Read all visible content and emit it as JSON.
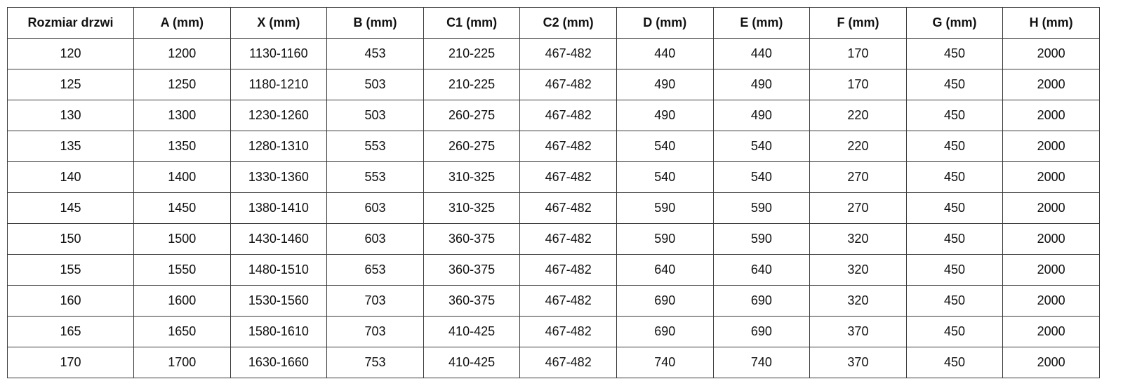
{
  "table": {
    "headers": [
      "Rozmiar drzwi",
      "A (mm)",
      "X (mm)",
      "B (mm)",
      "C1 (mm)",
      "C2 (mm)",
      "D (mm)",
      "E (mm)",
      "F (mm)",
      "G (mm)",
      "H (mm)"
    ],
    "rows": [
      [
        "120",
        "1200",
        "1130-1160",
        "453",
        "210-225",
        "467-482",
        "440",
        "440",
        "170",
        "450",
        "2000"
      ],
      [
        "125",
        "1250",
        "1180-1210",
        "503",
        "210-225",
        "467-482",
        "490",
        "490",
        "170",
        "450",
        "2000"
      ],
      [
        "130",
        "1300",
        "1230-1260",
        "503",
        "260-275",
        "467-482",
        "490",
        "490",
        "220",
        "450",
        "2000"
      ],
      [
        "135",
        "1350",
        "1280-1310",
        "553",
        "260-275",
        "467-482",
        "540",
        "540",
        "220",
        "450",
        "2000"
      ],
      [
        "140",
        "1400",
        "1330-1360",
        "553",
        "310-325",
        "467-482",
        "540",
        "540",
        "270",
        "450",
        "2000"
      ],
      [
        "145",
        "1450",
        "1380-1410",
        "603",
        "310-325",
        "467-482",
        "590",
        "590",
        "270",
        "450",
        "2000"
      ],
      [
        "150",
        "1500",
        "1430-1460",
        "603",
        "360-375",
        "467-482",
        "590",
        "590",
        "320",
        "450",
        "2000"
      ],
      [
        "155",
        "1550",
        "1480-1510",
        "653",
        "360-375",
        "467-482",
        "640",
        "640",
        "320",
        "450",
        "2000"
      ],
      [
        "160",
        "1600",
        "1530-1560",
        "703",
        "360-375",
        "467-482",
        "690",
        "690",
        "320",
        "450",
        "2000"
      ],
      [
        "165",
        "1650",
        "1580-1610",
        "703",
        "410-425",
        "467-482",
        "690",
        "690",
        "370",
        "450",
        "2000"
      ],
      [
        "170",
        "1700",
        "1630-1660",
        "753",
        "410-425",
        "467-482",
        "740",
        "740",
        "370",
        "450",
        "2000"
      ]
    ]
  }
}
